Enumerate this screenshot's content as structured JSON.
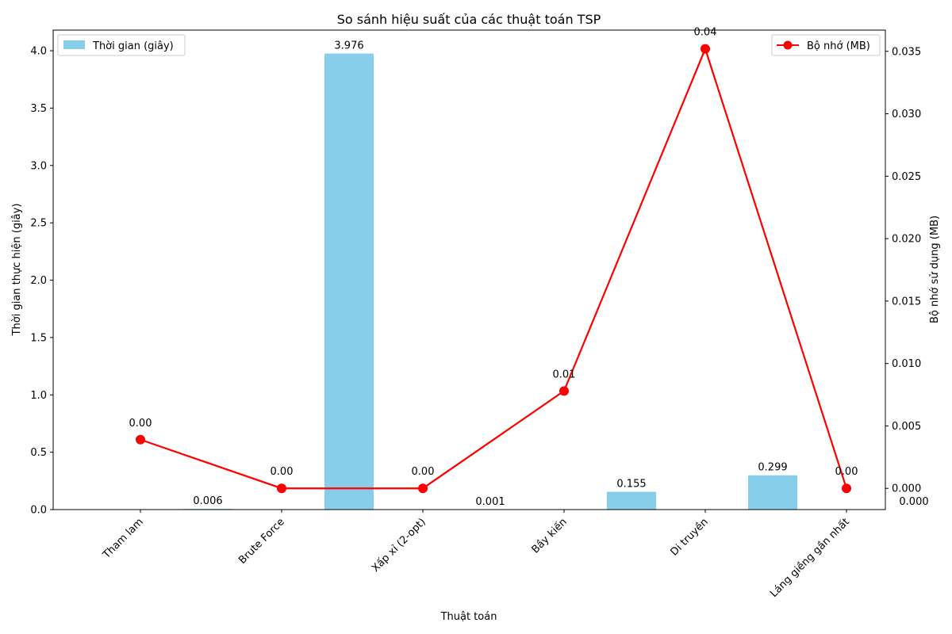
{
  "chart_data": {
    "type": "bar",
    "title": "So sánh hiệu suất của các thuật toán TSP",
    "xlabel": "Thuật toán",
    "ylabel_left": "Thời gian thực hiện (giây)",
    "ylabel_right": "Bộ nhớ sử dụng (MB)",
    "categories": [
      "Tham lam",
      "Brute Force",
      "Xấp xỉ (2-opt)",
      "Bầy kiến",
      "Di truyền",
      "Láng giềng gần nhất"
    ],
    "ylim_left": [
      0,
      4.18
    ],
    "ylim_right": [
      -0.0017,
      0.0367
    ],
    "yticks_left": [
      "0.0",
      "0.5",
      "1.0",
      "1.5",
      "2.0",
      "2.5",
      "3.0",
      "3.5",
      "4.0"
    ],
    "yticks_right": [
      "0.000",
      "0.005",
      "0.010",
      "0.015",
      "0.020",
      "0.025",
      "0.030",
      "0.035"
    ],
    "series": [
      {
        "name": "Thời gian (giây)",
        "kind": "bar",
        "axis": "left",
        "color": "#87ceeb",
        "values": [
          0.006,
          3.976,
          0.001,
          0.155,
          0.299,
          0.0
        ],
        "labels": [
          "0.006",
          "3.976",
          "0.001",
          "0.155",
          "0.299",
          "0.000"
        ]
      },
      {
        "name": "Bộ nhớ (MB)",
        "kind": "line",
        "axis": "right",
        "color": "#ff0000",
        "values": [
          0.0039,
          0.0,
          0.0,
          0.0078,
          0.0352,
          0.0
        ],
        "labels": [
          "0.00",
          "0.00",
          "0.00",
          "0.01",
          "0.04",
          "0.00"
        ]
      }
    ],
    "legend_left_placement": "upper-left",
    "legend_right_placement": "upper-right",
    "grid": false
  }
}
